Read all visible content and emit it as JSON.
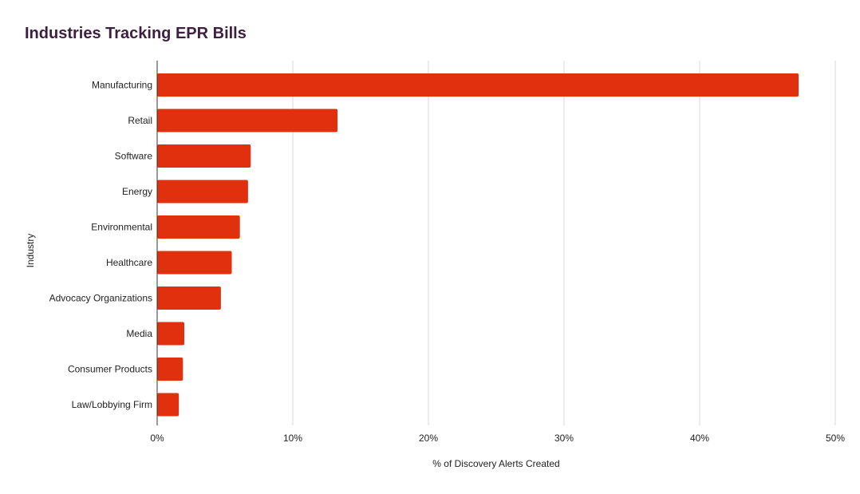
{
  "chart_data": {
    "type": "bar",
    "orientation": "horizontal",
    "title": "Industries Tracking EPR Bills",
    "xlabel": "% of Discovery Alerts Created",
    "ylabel": "Industry",
    "categories": [
      "Manufacturing",
      "Retail",
      "Software",
      "Energy",
      "Environmental",
      "Healthcare",
      "Advocacy Organizations",
      "Media",
      "Consumer Products",
      "Law/Lobbying Firm"
    ],
    "values": [
      47.3,
      13.3,
      6.9,
      6.7,
      6.1,
      5.5,
      4.7,
      2.0,
      1.9,
      1.6
    ],
    "xlim": [
      0,
      50
    ],
    "xticks": [
      0,
      10,
      20,
      30,
      40,
      50
    ],
    "xtick_labels": [
      "0%",
      "10%",
      "20%",
      "30%",
      "40%",
      "50%"
    ],
    "grid": "vertical",
    "legend": "none",
    "bar_color": "#e0300e",
    "title_color": "#3d1f3f"
  }
}
